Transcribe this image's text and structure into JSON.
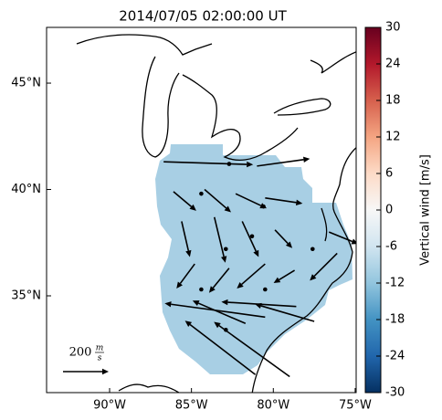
{
  "chart_data": {
    "type": "quiver",
    "title": "2014/07/05 02:00:00 UT",
    "xlim": [
      -93.85,
      -74.94
    ],
    "ylim": [
      30.45,
      47.62
    ],
    "xticks": [
      {
        "value": -90,
        "label": "90°W"
      },
      {
        "value": -85,
        "label": "85°W"
      },
      {
        "value": -80,
        "label": "80°W"
      },
      {
        "value": -75,
        "label": "75°W"
      }
    ],
    "yticks": [
      {
        "value": 35,
        "label": "35°N"
      },
      {
        "value": 40,
        "label": "40°N"
      },
      {
        "value": 45,
        "label": "45°N"
      }
    ],
    "colorbar": {
      "label": "Vertical wind [m/s]",
      "clim": [
        -30,
        30
      ],
      "ticks": [
        -30,
        -24,
        -18,
        -12,
        -6,
        0,
        6,
        12,
        18,
        24,
        30
      ]
    },
    "quiver_key": {
      "value": 200,
      "label": "200",
      "unit_num": "m",
      "unit_den": "s"
    },
    "vectors": {
      "lon": [
        -86.7,
        -82.7,
        -81.0,
        -86.1,
        -84.4,
        -84.2,
        -82.3,
        -80.5,
        -80.6,
        -85.6,
        -83.6,
        -81.9,
        -79.9,
        -76.6,
        -81.3,
        -77.6,
        -82.9,
        -84.8,
        -82.7,
        -80.5,
        -78.7,
        -76.1,
        -84.4,
        -80.5,
        -80.5,
        -78.6,
        -77.5,
        -81.7,
        -81.1,
        -79.0,
        -82.9
      ],
      "lat": [
        41.3,
        41.2,
        41.1,
        39.9,
        39.8,
        40.0,
        39.8,
        39.6,
        39.2,
        38.5,
        38.7,
        38.5,
        38.1,
        38.0,
        37.8,
        37.2,
        37.2,
        36.5,
        36.3,
        36.5,
        36.2,
        37.0,
        35.3,
        35.3,
        34.0,
        34.5,
        33.8,
        33.7,
        31.3,
        31.2,
        33.4
      ],
      "u": [
        392,
        0,
        232,
        100,
        0,
        116,
        136,
        164,
        0,
        36,
        48,
        72,
        76,
        128,
        0,
        0,
        0,
        -80,
        -88,
        -124,
        -92,
        -120,
        0,
        0,
        -440,
        -328,
        -260,
        -232,
        -308,
        -332,
        0
      ],
      "v": [
        -12,
        0,
        32,
        -84,
        0,
        -100,
        -64,
        -24,
        0,
        -156,
        -200,
        -156,
        -80,
        -52,
        0,
        0,
        0,
        -108,
        -108,
        -108,
        -56,
        -120,
        0,
        0,
        60,
        20,
        76,
        100,
        236,
        240,
        0
      ]
    }
  }
}
